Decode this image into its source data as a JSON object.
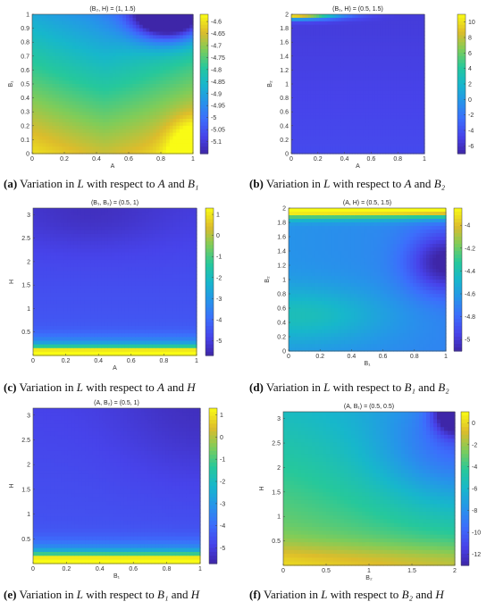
{
  "colors": {
    "parula_low": "#3e26a8",
    "parula_mid": "#23b7a6",
    "parula_high": "#f9fb15",
    "axis": "#444444"
  },
  "chart_data": [
    {
      "id": "a",
      "type": "heatmap",
      "title": "(B₂, H) = (1, 1.5)",
      "xlabel": "A",
      "ylabel": "B₁",
      "xlim": [
        0,
        1
      ],
      "ylim": [
        0,
        1
      ],
      "xticks": [
        "0",
        "0.2",
        "0.4",
        "0.6",
        "0.8",
        "1"
      ],
      "yticks": [
        "0",
        "0.1",
        "0.2",
        "0.3",
        "0.4",
        "0.5",
        "0.6",
        "0.7",
        "0.8",
        "0.9",
        "1"
      ],
      "colorbar_ticks": [
        "-4.6",
        "-4.65",
        "-4.7",
        "-4.75",
        "-4.8",
        "-4.85",
        "-4.9",
        "-4.95",
        "-5",
        "-5.05",
        "-5.1"
      ],
      "clim": [
        -5.15,
        -4.57
      ],
      "caption_tag": "(a)",
      "caption_text": "Variation in",
      "caption_var": "L",
      "caption_mid": "with respect to",
      "caption_v1": "A",
      "caption_and": "and",
      "caption_v2": "B₁"
    },
    {
      "id": "b",
      "type": "heatmap",
      "title": "(B₁, H) = (0.5, 1.5)",
      "xlabel": "A",
      "ylabel": "B₂",
      "xlim": [
        0,
        1
      ],
      "ylim": [
        0,
        2
      ],
      "xticks": [
        "0",
        "0.2",
        "0.4",
        "0.6",
        "0.8",
        "1"
      ],
      "yticks": [
        "0",
        "0.2",
        "0.4",
        "0.6",
        "0.8",
        "1",
        "1.2",
        "1.4",
        "1.6",
        "1.8",
        "2"
      ],
      "colorbar_ticks": [
        "10",
        "8",
        "6",
        "4",
        "2",
        "0",
        "-2",
        "-4",
        "-6"
      ],
      "clim": [
        -7,
        11
      ],
      "caption_tag": "(b)",
      "caption_text": "Variation in",
      "caption_var": "L",
      "caption_mid": "with respect to",
      "caption_v1": "A",
      "caption_and": "and",
      "caption_v2": "B₂"
    },
    {
      "id": "c",
      "type": "heatmap",
      "title": "(B₁, B₂) = (0.5, 1)",
      "xlabel": "A",
      "ylabel": "H",
      "xlim": [
        0,
        1
      ],
      "ylim": [
        0,
        3.14
      ],
      "xticks": [
        "0",
        "0.2",
        "0.4",
        "0.6",
        "0.8",
        "1"
      ],
      "yticks": [
        "0.5",
        "1",
        "1.5",
        "2",
        "2.5",
        "3"
      ],
      "colorbar_ticks": [
        "1",
        "0",
        "-1",
        "-2",
        "-3",
        "-4",
        "-5"
      ],
      "clim": [
        -5.7,
        1.3
      ],
      "caption_tag": "(c)",
      "caption_text": "Variation in",
      "caption_var": "L",
      "caption_mid": "with respect to",
      "caption_v1": "A",
      "caption_and": "and",
      "caption_v2": "H"
    },
    {
      "id": "d",
      "type": "heatmap",
      "title": "(A, H) = (0.5, 1.5)",
      "xlabel": "B₁",
      "ylabel": "B₂",
      "xlim": [
        0,
        1
      ],
      "ylim": [
        0,
        2
      ],
      "xticks": [
        "0",
        "0.2",
        "0.4",
        "0.6",
        "0.8",
        "1"
      ],
      "yticks": [
        "0",
        "0.2",
        "0.4",
        "0.6",
        "0.8",
        "1",
        "1.2",
        "1.4",
        "1.6",
        "1.8",
        "2"
      ],
      "colorbar_ticks": [
        "-4",
        "-4.2",
        "-4.4",
        "-4.6",
        "-4.8",
        "-5"
      ],
      "clim": [
        -5.1,
        -3.85
      ],
      "caption_tag": "(d)",
      "caption_text": "Variation in",
      "caption_var": "L",
      "caption_mid": "with respect to",
      "caption_v1": "B₁",
      "caption_and": "and",
      "caption_v2": "B₂"
    },
    {
      "id": "e",
      "type": "heatmap",
      "title": "(A, B₂) = (0.5, 1)",
      "xlabel": "B₁",
      "ylabel": "H",
      "xlim": [
        0,
        1
      ],
      "ylim": [
        0,
        3.14
      ],
      "xticks": [
        "0",
        "0.2",
        "0.4",
        "0.6",
        "0.8",
        "1"
      ],
      "yticks": [
        "0.5",
        "1",
        "1.5",
        "2",
        "2.5",
        "3"
      ],
      "colorbar_ticks": [
        "1",
        "0",
        "-1",
        "-2",
        "-3",
        "-4",
        "-5"
      ],
      "clim": [
        -5.7,
        1.3
      ],
      "caption_tag": "(e)",
      "caption_text": "Variation in",
      "caption_var": "L",
      "caption_mid": "with respect to",
      "caption_v1": "B₁",
      "caption_and": "and",
      "caption_v2": "H"
    },
    {
      "id": "f",
      "type": "heatmap",
      "title": "(A, B₁) = (0.5, 0.5)",
      "xlabel": "B₂",
      "ylabel": "H",
      "xlim": [
        0,
        2
      ],
      "ylim": [
        0,
        3.14
      ],
      "xticks": [
        "0",
        "0.5",
        "1",
        "1.5",
        "2"
      ],
      "yticks": [
        "0.5",
        "1",
        "1.5",
        "2",
        "2.5",
        "3"
      ],
      "colorbar_ticks": [
        "0",
        "-2",
        "-4",
        "-6",
        "-8",
        "-10",
        "-12"
      ],
      "clim": [
        -13,
        1
      ],
      "caption_tag": "(f)",
      "caption_text": "Variation in",
      "caption_var": "L",
      "caption_mid": "with respect to",
      "caption_v1": "B₂",
      "caption_and": "and",
      "caption_v2": "H"
    }
  ]
}
